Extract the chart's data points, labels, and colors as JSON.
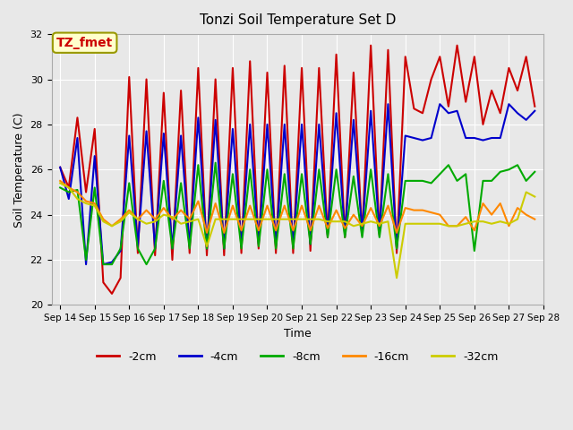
{
  "title": "Tonzi Soil Temperature Set D",
  "xlabel": "Time",
  "ylabel": "Soil Temperature (C)",
  "ylim": [
    20,
    32
  ],
  "background_color": "#e8e8e8",
  "annotation_text": "TZ_fmet",
  "annotation_color": "#cc0000",
  "annotation_bg": "#ffffcc",
  "annotation_border": "#999900",
  "series": {
    "-2cm": {
      "color": "#cc0000",
      "x": [
        0,
        0.5,
        1,
        1.5,
        2,
        2.5,
        3,
        3.5,
        4,
        4.5,
        5,
        5.5,
        6,
        6.5,
        7,
        7.5,
        8,
        8.5,
        9,
        9.5,
        10,
        10.5,
        11,
        11.5,
        12,
        12.5,
        13,
        13.5,
        14,
        14.5,
        15,
        15.5,
        16,
        16.5,
        17,
        17.5,
        18,
        18.5,
        19,
        19.5,
        20,
        20.5,
        21,
        21.5,
        22,
        22.5,
        23,
        23.5,
        24,
        24.5,
        25,
        25.5,
        26,
        26.5,
        27,
        27.5
      ],
      "y": [
        26.1,
        25.2,
        28.3,
        25.0,
        27.8,
        21.0,
        20.5,
        21.2,
        30.1,
        22.3,
        30.0,
        22.2,
        29.4,
        22.0,
        29.5,
        22.3,
        30.5,
        22.2,
        30.0,
        22.2,
        30.5,
        22.3,
        30.8,
        22.5,
        30.3,
        22.3,
        30.6,
        22.3,
        30.5,
        22.4,
        30.5,
        23.0,
        31.1,
        23.0,
        30.3,
        23.1,
        31.5,
        23.1,
        31.3,
        22.3,
        31.0,
        28.7,
        28.5,
        30.0,
        31.0,
        28.8,
        31.5,
        29.0,
        31.0,
        28.0,
        29.5,
        28.5,
        30.5,
        29.5,
        31.0,
        28.8
      ]
    },
    "-4cm": {
      "color": "#0000cc",
      "x": [
        0,
        0.5,
        1,
        1.5,
        2,
        2.5,
        3,
        3.5,
        4,
        4.5,
        5,
        5.5,
        6,
        6.5,
        7,
        7.5,
        8,
        8.5,
        9,
        9.5,
        10,
        10.5,
        11,
        11.5,
        12,
        12.5,
        13,
        13.5,
        14,
        14.5,
        15,
        15.5,
        16,
        16.5,
        17,
        17.5,
        18,
        18.5,
        19,
        19.5,
        20,
        20.5,
        21,
        21.5,
        22,
        22.5,
        23,
        23.5,
        24,
        24.5,
        25,
        25.5,
        26,
        26.5,
        27,
        27.5
      ],
      "y": [
        26.1,
        24.7,
        27.4,
        21.8,
        26.6,
        21.8,
        21.9,
        22.4,
        27.5,
        22.6,
        27.7,
        22.5,
        27.6,
        22.5,
        27.5,
        22.6,
        28.3,
        22.5,
        28.2,
        22.5,
        27.8,
        22.6,
        28.0,
        22.7,
        28.0,
        22.6,
        28.0,
        22.6,
        28.0,
        22.7,
        28.0,
        23.1,
        28.5,
        23.1,
        28.2,
        23.2,
        28.6,
        23.2,
        28.9,
        22.5,
        27.5,
        27.4,
        27.3,
        27.4,
        28.9,
        28.5,
        28.6,
        27.4,
        27.4,
        27.3,
        27.4,
        27.4,
        28.9,
        28.5,
        28.2,
        28.6
      ]
    },
    "-8cm": {
      "color": "#00aa00",
      "x": [
        0,
        0.5,
        1,
        1.5,
        2,
        2.5,
        3,
        3.5,
        4,
        4.5,
        5,
        5.5,
        6,
        6.5,
        7,
        7.5,
        8,
        8.5,
        9,
        9.5,
        10,
        10.5,
        11,
        11.5,
        12,
        12.5,
        13,
        13.5,
        14,
        14.5,
        15,
        15.5,
        16,
        16.5,
        17,
        17.5,
        18,
        18.5,
        19,
        19.5,
        20,
        20.5,
        21,
        21.5,
        22,
        22.5,
        23,
        23.5,
        24,
        24.5,
        25,
        25.5,
        26,
        26.5,
        27,
        27.5
      ],
      "y": [
        25.2,
        25.0,
        25.1,
        22.0,
        25.2,
        21.8,
        21.8,
        22.5,
        25.4,
        22.5,
        21.8,
        22.5,
        25.5,
        22.5,
        25.4,
        22.5,
        26.2,
        22.5,
        26.3,
        22.5,
        25.8,
        22.5,
        26.0,
        22.6,
        26.0,
        22.5,
        25.8,
        22.5,
        25.8,
        22.7,
        26.0,
        23.0,
        26.0,
        23.0,
        25.7,
        23.0,
        26.0,
        23.0,
        25.8,
        22.5,
        25.5,
        25.5,
        25.5,
        25.4,
        25.8,
        26.2,
        25.5,
        25.8,
        22.4,
        25.5,
        25.5,
        25.9,
        26.0,
        26.2,
        25.5,
        25.9
      ]
    },
    "-16cm": {
      "color": "#ff8800",
      "x": [
        0,
        0.5,
        1,
        1.5,
        2,
        2.5,
        3,
        3.5,
        4,
        4.5,
        5,
        5.5,
        6,
        6.5,
        7,
        7.5,
        8,
        8.5,
        9,
        9.5,
        10,
        10.5,
        11,
        11.5,
        12,
        12.5,
        13,
        13.5,
        14,
        14.5,
        15,
        15.5,
        16,
        16.5,
        17,
        17.5,
        18,
        18.5,
        19,
        19.5,
        20,
        20.5,
        21,
        21.5,
        22,
        22.5,
        23,
        23.5,
        24,
        24.5,
        25,
        25.5,
        26,
        26.5,
        27,
        27.5
      ],
      "y": [
        25.5,
        25.2,
        25.0,
        24.6,
        24.5,
        23.8,
        23.5,
        23.8,
        24.2,
        23.8,
        24.2,
        23.8,
        24.3,
        23.8,
        24.2,
        23.8,
        24.6,
        23.2,
        24.5,
        23.2,
        24.4,
        23.3,
        24.4,
        23.3,
        24.4,
        23.3,
        24.4,
        23.3,
        24.4,
        23.3,
        24.4,
        23.4,
        24.2,
        23.4,
        24.0,
        23.5,
        24.3,
        23.5,
        24.4,
        23.2,
        24.3,
        24.2,
        24.2,
        24.1,
        24.0,
        23.5,
        23.5,
        23.9,
        23.3,
        24.5,
        24.0,
        24.5,
        23.5,
        24.3,
        24.0,
        23.8
      ]
    },
    "-32cm": {
      "color": "#cccc00",
      "x": [
        0,
        0.5,
        1,
        1.5,
        2,
        2.5,
        3,
        3.5,
        4,
        4.5,
        5,
        5.5,
        6,
        6.5,
        7,
        7.5,
        8,
        8.5,
        9,
        9.5,
        10,
        10.5,
        11,
        11.5,
        12,
        12.5,
        13,
        13.5,
        14,
        14.5,
        15,
        15.5,
        16,
        16.5,
        17,
        17.5,
        18,
        18.5,
        19,
        19.5,
        20,
        20.5,
        21,
        21.5,
        22,
        22.5,
        23,
        23.5,
        24,
        24.5,
        25,
        25.5,
        26,
        26.5,
        27,
        27.5
      ],
      "y": [
        25.4,
        25.2,
        24.7,
        24.5,
        24.4,
        23.7,
        23.5,
        23.7,
        24.1,
        23.8,
        23.6,
        23.7,
        24.0,
        23.9,
        23.6,
        23.7,
        23.8,
        22.6,
        23.8,
        23.8,
        23.8,
        23.8,
        23.8,
        23.8,
        23.8,
        23.8,
        23.8,
        23.8,
        23.8,
        23.8,
        23.8,
        23.7,
        23.7,
        23.7,
        23.5,
        23.6,
        23.7,
        23.6,
        23.7,
        21.2,
        23.6,
        23.6,
        23.6,
        23.6,
        23.6,
        23.5,
        23.5,
        23.6,
        23.7,
        23.7,
        23.6,
        23.7,
        23.6,
        23.8,
        25.0,
        24.8
      ]
    }
  },
  "ytick_positions": [
    20,
    22,
    24,
    26,
    28,
    30,
    32
  ],
  "xtick_positions": [
    0,
    2,
    4,
    6,
    8,
    10,
    12,
    14,
    16,
    18,
    20,
    22,
    24,
    26,
    28
  ],
  "xtick_labels": [
    "Sep 14",
    "Sep 15",
    "Sep 16",
    "Sep 17",
    "Sep 18",
    "Sep 19",
    "Sep 20",
    "Sep 21",
    "Sep 22",
    "Sep 23",
    "Sep 24",
    "Sep 25",
    "Sep 26",
    "Sep 27",
    "Sep 28"
  ]
}
